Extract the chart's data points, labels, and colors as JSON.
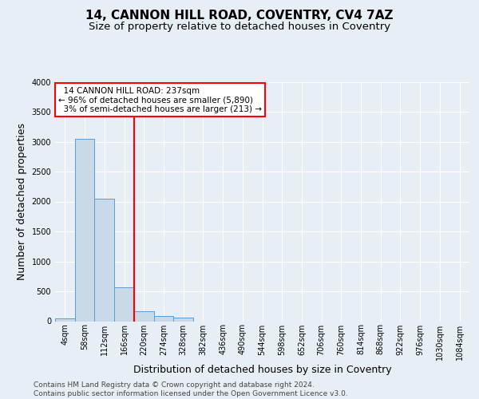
{
  "title": "14, CANNON HILL ROAD, COVENTRY, CV4 7AZ",
  "subtitle": "Size of property relative to detached houses in Coventry",
  "xlabel": "Distribution of detached houses by size in Coventry",
  "ylabel": "Number of detached properties",
  "bin_labels": [
    "4sqm",
    "58sqm",
    "112sqm",
    "166sqm",
    "220sqm",
    "274sqm",
    "328sqm",
    "382sqm",
    "436sqm",
    "490sqm",
    "544sqm",
    "598sqm",
    "652sqm",
    "706sqm",
    "760sqm",
    "814sqm",
    "868sqm",
    "922sqm",
    "976sqm",
    "1030sqm",
    "1084sqm"
  ],
  "bar_heights": [
    50,
    3050,
    2050,
    570,
    165,
    85,
    60,
    0,
    0,
    0,
    0,
    0,
    0,
    0,
    0,
    0,
    0,
    0,
    0,
    0,
    0
  ],
  "bar_color": "#c9d9e8",
  "bar_edge_color": "#5b9bd5",
  "vline_x": 4.0,
  "vline_label": "14 CANNON HILL ROAD: 237sqm",
  "pct_smaller": "96%",
  "count_smaller": "5,890",
  "pct_larger": "3%",
  "count_larger": "213",
  "ylim": [
    0,
    4000
  ],
  "yticks": [
    0,
    500,
    1000,
    1500,
    2000,
    2500,
    3000,
    3500,
    4000
  ],
  "background_color": "#e8eef6",
  "plot_bg_color": "#e8eef6",
  "grid_color": "#ffffff",
  "title_fontsize": 11,
  "subtitle_fontsize": 9.5,
  "axis_label_fontsize": 9,
  "tick_fontsize": 7,
  "annot_fontsize": 7.5,
  "footer_fontsize": 6.5,
  "footer1": "Contains HM Land Registry data © Crown copyright and database right 2024.",
  "footer2": "Contains public sector information licensed under the Open Government Licence v3.0."
}
